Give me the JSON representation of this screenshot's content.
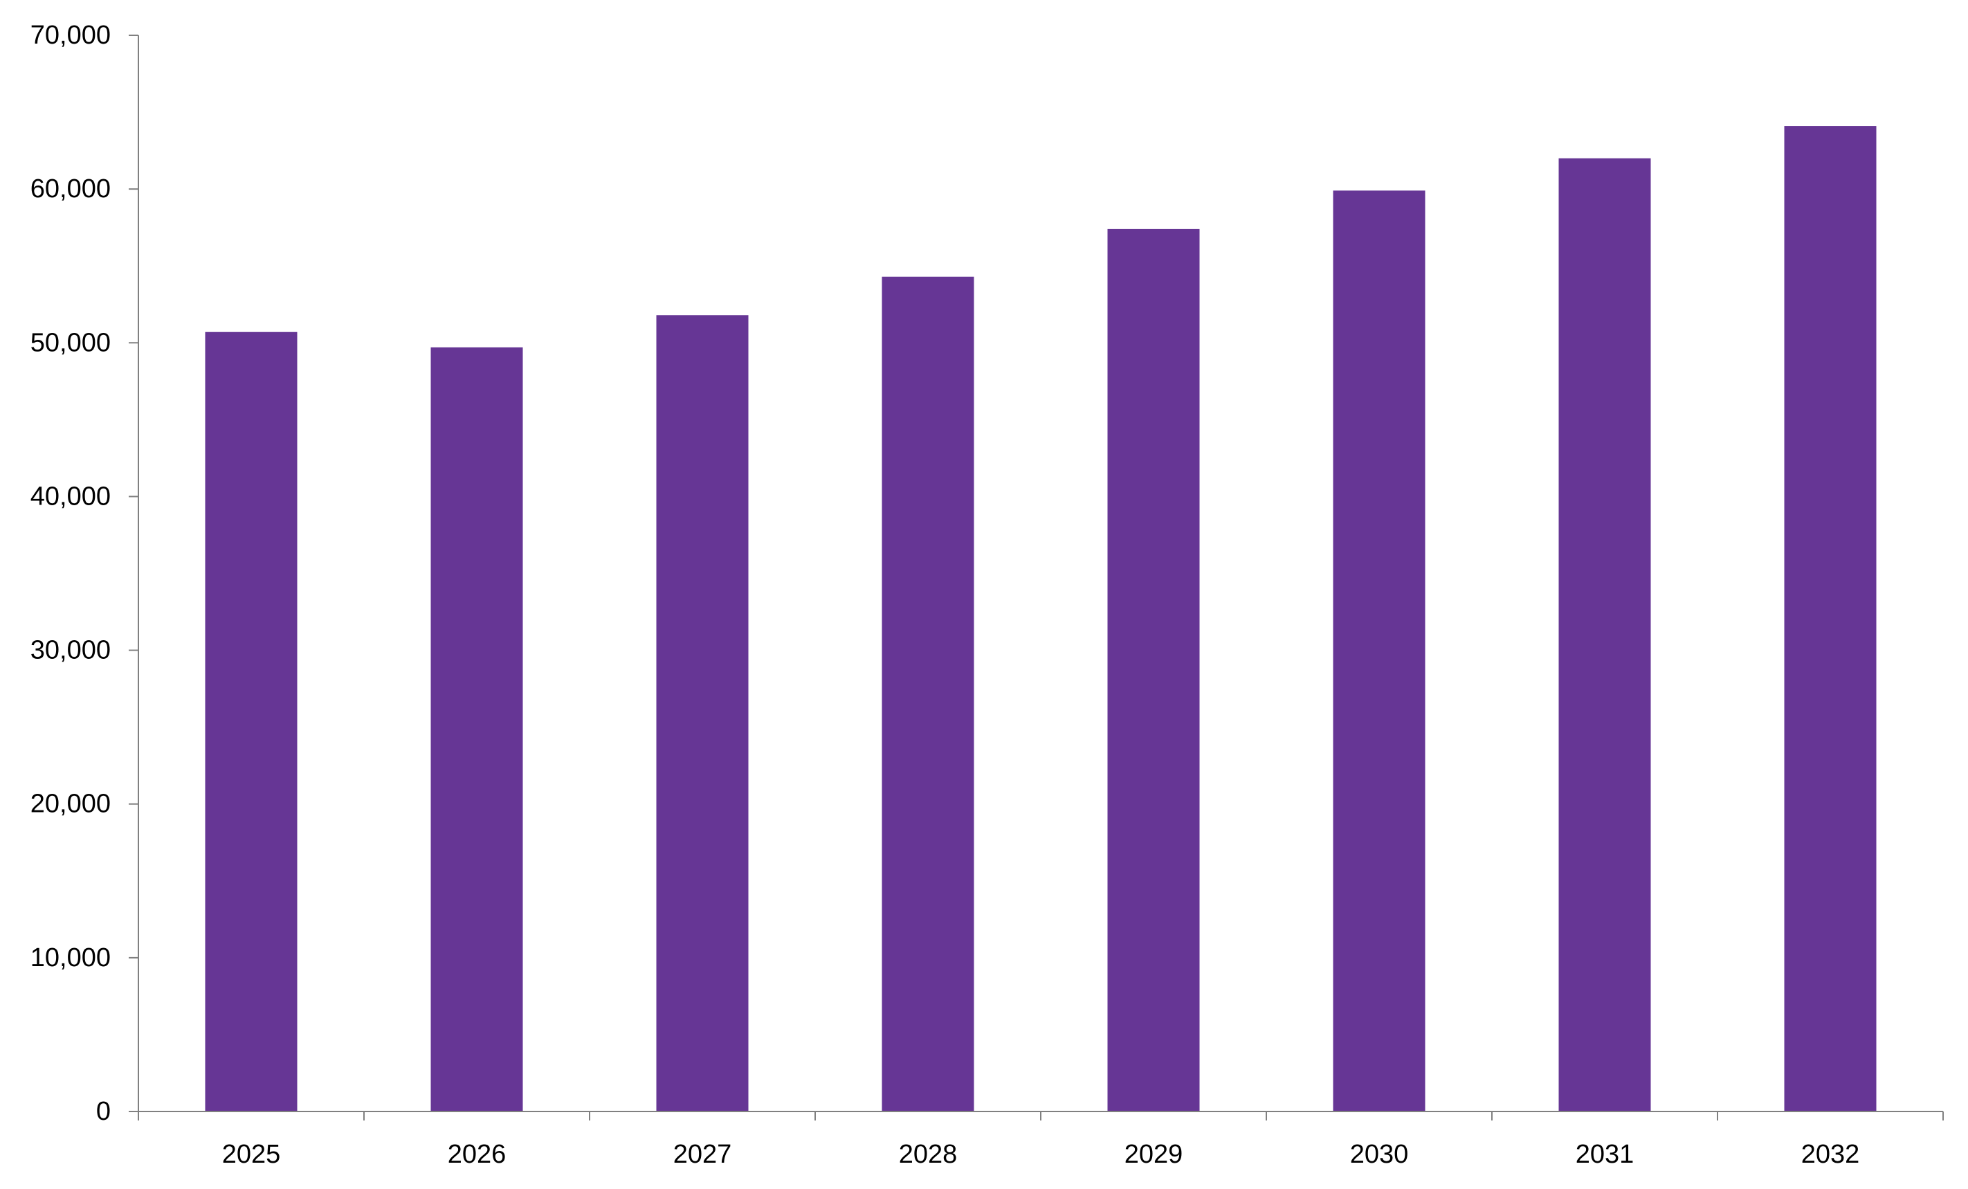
{
  "chart_data": {
    "type": "bar",
    "title": "",
    "xlabel": "",
    "ylabel": "",
    "categories": [
      "2025",
      "2026",
      "2027",
      "2028",
      "2029",
      "2030",
      "2031",
      "2032"
    ],
    "values": [
      50700,
      49700,
      51800,
      54300,
      57400,
      59900,
      62000,
      64100
    ],
    "ylim": [
      0,
      70000
    ],
    "yticks": [
      0,
      10000,
      20000,
      30000,
      40000,
      50000,
      60000,
      70000
    ],
    "ytick_labels": [
      "0",
      "10,000",
      "20,000",
      "30,000",
      "40,000",
      "50,000",
      "60,000",
      "70,000"
    ],
    "grid": false,
    "legend": "none",
    "colors": {
      "bar": "#663695",
      "axis": "#808080",
      "text": "#000000"
    }
  }
}
